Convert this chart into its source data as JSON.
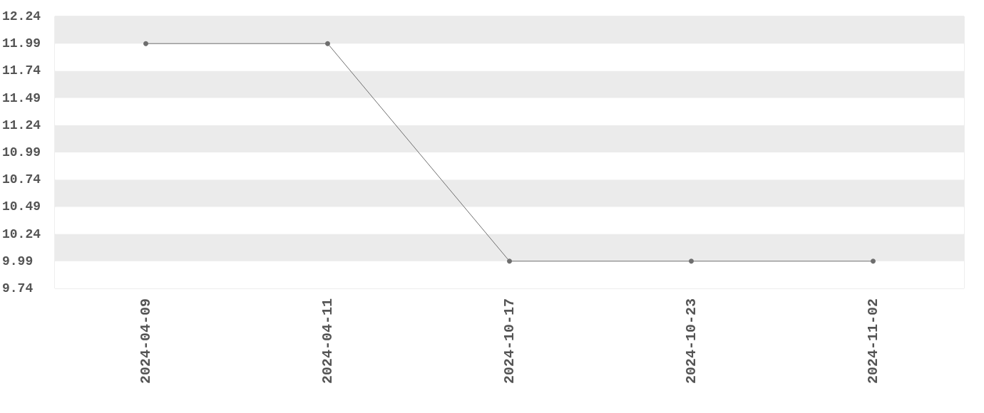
{
  "chart_data": {
    "type": "line",
    "categories": [
      "2024-04-09",
      "2024-04-11",
      "2024-10-17",
      "2024-10-23",
      "2024-11-02"
    ],
    "series": [
      {
        "color": "#6e6e6e",
        "values": [
          11.99,
          11.99,
          9.99,
          9.99,
          9.99
        ]
      }
    ],
    "ylim": [
      9.74,
      12.24
    ],
    "yticks": [
      9.74,
      9.99,
      10.24,
      10.49,
      10.74,
      10.99,
      11.24,
      11.49,
      11.74,
      11.99,
      12.24
    ],
    "marker": "circle",
    "line_style": "solid"
  }
}
